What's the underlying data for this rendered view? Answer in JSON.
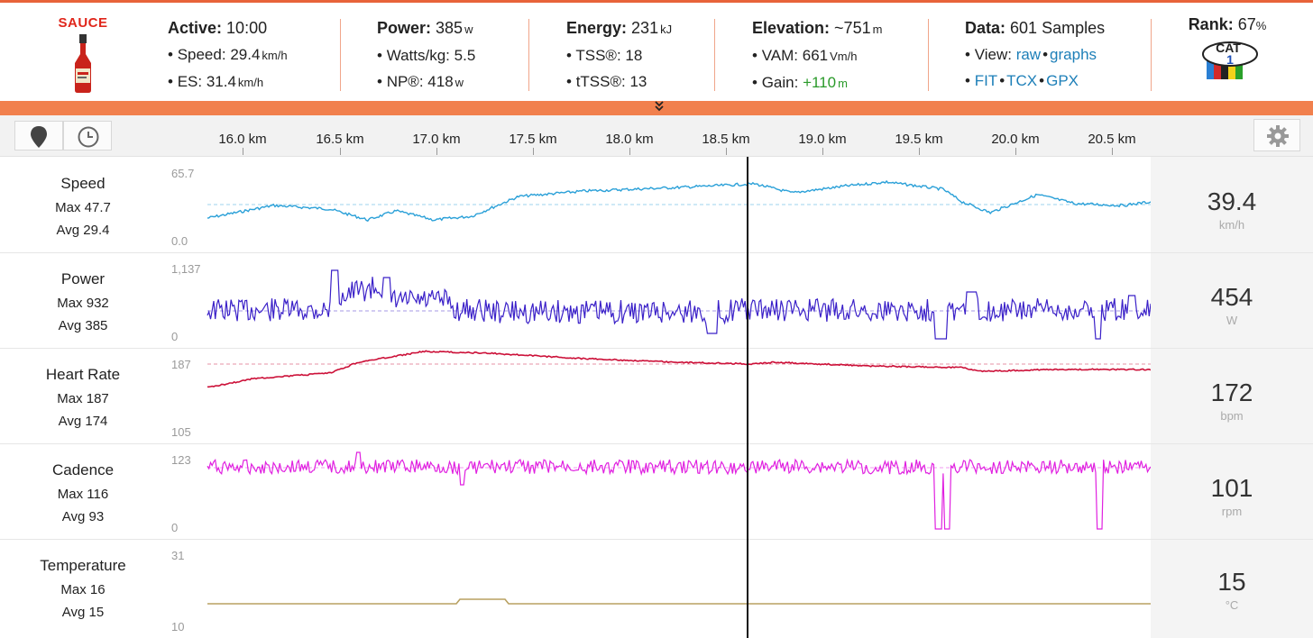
{
  "logo": {
    "brand": "SAUCE"
  },
  "stats": {
    "active": {
      "label": "Active:",
      "value": "10:00",
      "speed_label": "Speed:",
      "speed_value": "29.4",
      "speed_unit": "km/h",
      "es_label": "ES:",
      "es_value": "31.4",
      "es_unit": "km/h"
    },
    "power": {
      "label": "Power:",
      "value": "385",
      "unit": "w",
      "wkg_label": "Watts/kg:",
      "wkg_value": "5.5",
      "np_label": "NP®:",
      "np_value": "418",
      "np_unit": "w"
    },
    "energy": {
      "label": "Energy:",
      "value": "231",
      "unit": "kJ",
      "tss_label": "TSS®:",
      "tss_value": "18",
      "ttss_label": "tTSS®:",
      "ttss_value": "13"
    },
    "elevation": {
      "label": "Elevation:",
      "value": "~751",
      "unit": "m",
      "vam_label": "VAM:",
      "vam_value": "661",
      "vam_unit": "Vm/h",
      "gain_label": "Gain:",
      "gain_value": "+110",
      "gain_unit": "m"
    },
    "data": {
      "label": "Data:",
      "value": "601 Samples",
      "view_label": "View:",
      "view_raw": "raw",
      "view_graphs": "graphs",
      "fit": "FIT",
      "tcx": "TCX",
      "gpx": "GPX"
    },
    "rank": {
      "label": "Rank:",
      "value": "67",
      "unit": "%",
      "badge_text": "CAT",
      "badge_num": "1"
    }
  },
  "expander_icon": "double-chevron-down-icon",
  "toolbar": {
    "map_icon": "map-pin-icon",
    "time_icon": "clock-icon",
    "settings_icon": "gear-icon"
  },
  "x_axis": {
    "ticks": [
      "16.0 km",
      "16.5 km",
      "17.0 km",
      "17.5 km",
      "18.0 km",
      "18.5 km",
      "19.0 km",
      "19.5 km",
      "20.0 km",
      "20.5 km"
    ]
  },
  "rows": [
    {
      "name": "Speed",
      "max": "Max 47.7",
      "avg": "Avg 29.4",
      "ymax": "65.7",
      "ymin": "0.0",
      "current": "39.4",
      "unit": "km/h",
      "color": "#2aa0d8"
    },
    {
      "name": "Power",
      "max": "Max 932",
      "avg": "Avg 385",
      "ymax": "1,137",
      "ymin": "0",
      "current": "454",
      "unit": "W",
      "color": "#3a20c8"
    },
    {
      "name": "Heart Rate",
      "max": "Max 187",
      "avg": "Avg 174",
      "ymax": "187",
      "ymin": "105",
      "current": "172",
      "unit": "bpm",
      "color": "#cc1038"
    },
    {
      "name": "Cadence",
      "max": "Max 116",
      "avg": "Avg 93",
      "ymax": "123",
      "ymin": "0",
      "current": "101",
      "unit": "rpm",
      "color": "#e020e0"
    },
    {
      "name": "Temperature",
      "max": "Max 16",
      "avg": "Avg 15",
      "ymax": "31",
      "ymin": "10",
      "current": "15",
      "unit": "°C",
      "color": "#b8a060"
    }
  ]
}
